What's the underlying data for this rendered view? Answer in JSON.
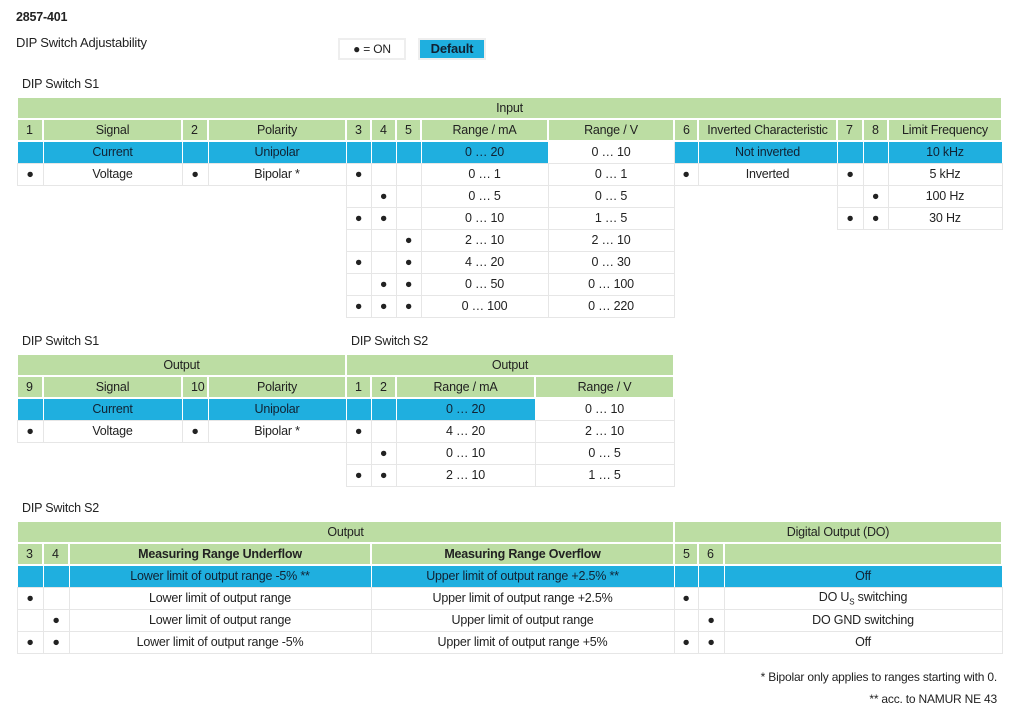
{
  "header": {
    "title": "2857-401",
    "subtitle": "DIP Switch Adjustability"
  },
  "legend": {
    "on_label": "● = ON",
    "default_label": "Default"
  },
  "colors": {
    "header_green": "#bcdda3",
    "default_blue": "#1fafdf"
  },
  "tables": [
    {
      "label": "DIP Switch S1",
      "groups": [
        "Input"
      ],
      "headers": [
        "1",
        "Signal",
        "2",
        "Polarity",
        "3",
        "4",
        "5",
        "Range / mA",
        "Range / V",
        "6",
        "Inverted Characteristic",
        "7",
        "8",
        "Limit Frequency"
      ],
      "rows": [
        [
          "",
          "Current",
          "",
          "Unipolar",
          "",
          "",
          "",
          "0 … 20",
          "0 … 10",
          "",
          "Not inverted",
          "",
          "",
          "10 kHz"
        ],
        [
          "●",
          "Voltage",
          "●",
          "Bipolar *",
          "●",
          "",
          "",
          "0 … 1",
          "0 … 1",
          "●",
          "Inverted",
          "●",
          "",
          "5 kHz"
        ],
        [
          null,
          null,
          null,
          null,
          "",
          "●",
          "",
          "0 … 5",
          "0 … 5",
          null,
          null,
          "",
          "●",
          "100 Hz"
        ],
        [
          null,
          null,
          null,
          null,
          "●",
          "●",
          "",
          "0 … 10",
          "1 … 5",
          null,
          null,
          "●",
          "●",
          "30 Hz"
        ],
        [
          null,
          null,
          null,
          null,
          "",
          "",
          "●",
          "2 … 10",
          "2 … 10",
          null,
          null,
          null,
          null,
          null
        ],
        [
          null,
          null,
          null,
          null,
          "●",
          "",
          "●",
          "4 … 20",
          "0 … 30",
          null,
          null,
          null,
          null,
          null
        ],
        [
          null,
          null,
          null,
          null,
          "",
          "●",
          "●",
          "0 … 50",
          "0 … 100",
          null,
          null,
          null,
          null,
          null
        ],
        [
          null,
          null,
          null,
          null,
          "●",
          "●",
          "●",
          "0 … 100",
          "0 … 220",
          null,
          null,
          null,
          null,
          null
        ]
      ]
    },
    {
      "label": "DIP Switch S1",
      "groups": [
        "Output"
      ],
      "headers": [
        "9",
        "Signal",
        "10",
        "Polarity"
      ],
      "rows": [
        [
          "",
          "Current",
          "",
          "Unipolar"
        ],
        [
          "●",
          "Voltage",
          "●",
          "Bipolar *"
        ]
      ]
    },
    {
      "label": "DIP Switch S2",
      "groups": [
        "Output"
      ],
      "headers": [
        "1",
        "2",
        "Range / mA",
        "Range / V"
      ],
      "rows": [
        [
          "",
          "",
          "0 … 20",
          "0 … 10"
        ],
        [
          "●",
          "",
          "4 … 20",
          "2 … 10"
        ],
        [
          "",
          "●",
          "0 … 10",
          "0 … 5"
        ],
        [
          "●",
          "●",
          "2 … 10",
          "1 … 5"
        ]
      ]
    },
    {
      "label": "DIP Switch S2",
      "groups": [
        "Output",
        "Digital Output (DO)"
      ],
      "headers": [
        "3",
        "4",
        "Measuring Range Underflow",
        "Measuring Range Overflow",
        "5",
        "6",
        ""
      ],
      "rows": [
        [
          "",
          "",
          "Lower limit of output range -5% **",
          "Upper limit of output range +2.5% **",
          "",
          "",
          "Off"
        ],
        [
          "●",
          "",
          "Lower limit of output range",
          "Upper limit of output range +2.5%",
          "●",
          "",
          {
            "pre": "DO U",
            "sub": "S",
            "post": " switching"
          }
        ],
        [
          "",
          "●",
          "Lower limit of output range",
          "Upper limit of output range",
          "",
          "●",
          "DO GND switching"
        ],
        [
          "●",
          "●",
          "Lower limit of output range -5%",
          "Upper limit of output range +5%",
          "●",
          "●",
          "Off"
        ]
      ]
    }
  ],
  "footnotes": [
    "* Bipolar only applies to ranges starting with 0.",
    "** acc. to NAMUR NE 43"
  ]
}
